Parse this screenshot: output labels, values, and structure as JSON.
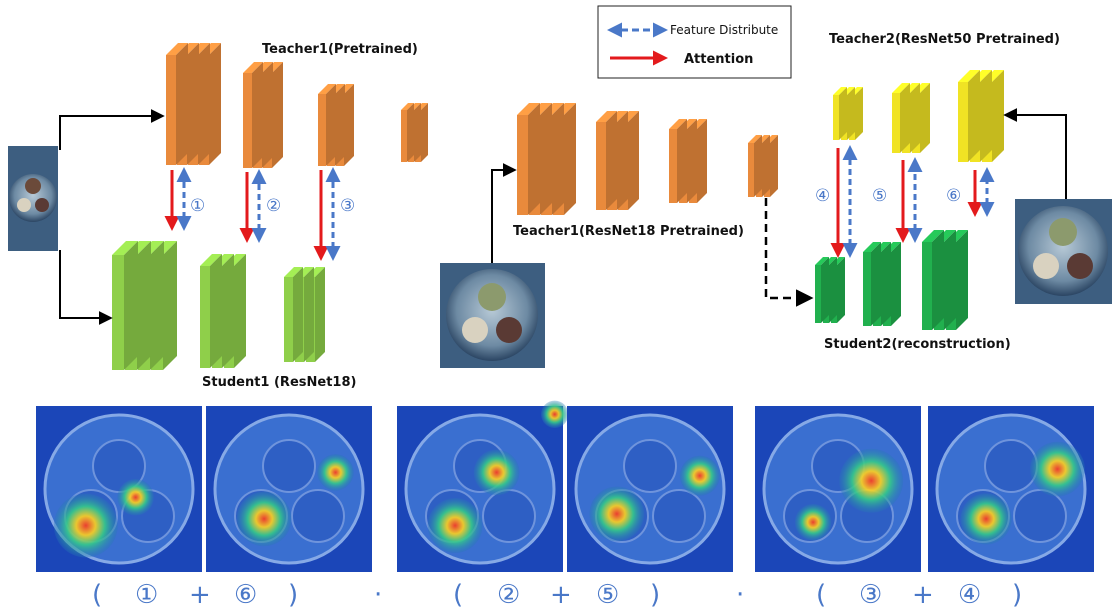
{
  "legend": {
    "feature_label": "Feature Distribute",
    "attention_label": "Attention"
  },
  "labels": {
    "teacher1_left": "Teacher1(Pretrained)",
    "student1": "Student1 (ResNet18)",
    "teacher1_mid": "Teacher1(ResNet18 Pretrained)",
    "teacher2": "Teacher2(ResNet50 Pretrained)",
    "student2": "Student2(reconstruction)"
  },
  "markers": [
    "①",
    "②",
    "③",
    "④",
    "⑤",
    "⑥"
  ],
  "formula": [
    "(",
    "①",
    "+",
    "⑥",
    ")",
    "·",
    "(",
    "②",
    "+",
    "⑤",
    ")",
    "·",
    "(",
    "③",
    "+",
    "④",
    ")"
  ],
  "colors": {
    "teacher1": "#e98a3c",
    "student1": "#8fcf4a",
    "teacher2": "#f0e324",
    "student2": "#21b04e",
    "attention": "#e31a1c",
    "feature": "#4a78c8"
  }
}
